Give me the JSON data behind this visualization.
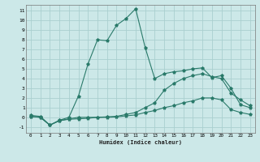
{
  "xlabel": "Humidex (Indice chaleur)",
  "bg_color": "#cce8e8",
  "line_color": "#2a7a6a",
  "grid_color": "#aacfcf",
  "xlim": [
    -0.5,
    23.5
  ],
  "ylim": [
    -1.6,
    11.6
  ],
  "xticks": [
    0,
    1,
    2,
    3,
    4,
    5,
    6,
    7,
    8,
    9,
    10,
    11,
    12,
    13,
    14,
    15,
    16,
    17,
    18,
    19,
    20,
    21,
    22,
    23
  ],
  "yticks": [
    -1,
    0,
    1,
    2,
    3,
    4,
    5,
    6,
    7,
    8,
    9,
    10,
    11
  ],
  "lines": [
    {
      "x": [
        0,
        1,
        2,
        3,
        4,
        5,
        6,
        7,
        8,
        9,
        10,
        11,
        12,
        13,
        14,
        15,
        16,
        17,
        18,
        19,
        20,
        21,
        22,
        23
      ],
      "y": [
        0.2,
        0.1,
        -0.8,
        -0.3,
        0.0,
        2.2,
        5.5,
        8.0,
        7.9,
        9.5,
        10.2,
        11.2,
        7.2,
        4.0,
        4.5,
        4.7,
        4.8,
        5.0,
        5.1,
        4.1,
        4.3,
        3.0,
        1.3,
        1.0
      ]
    },
    {
      "x": [
        0,
        1,
        2,
        3,
        4,
        5,
        6,
        7,
        8,
        9,
        10,
        11,
        12,
        13,
        14,
        15,
        16,
        17,
        18,
        19,
        20,
        21,
        22,
        23
      ],
      "y": [
        0.1,
        0.0,
        -0.8,
        -0.35,
        -0.15,
        -0.0,
        0.0,
        0.0,
        0.05,
        0.1,
        0.3,
        0.5,
        1.0,
        1.5,
        2.8,
        3.5,
        4.0,
        4.3,
        4.5,
        4.2,
        4.0,
        2.5,
        1.8,
        1.2
      ]
    },
    {
      "x": [
        0,
        1,
        2,
        3,
        4,
        5,
        6,
        7,
        8,
        9,
        10,
        11,
        12,
        13,
        14,
        15,
        16,
        17,
        18,
        19,
        20,
        21,
        22,
        23
      ],
      "y": [
        0.1,
        0.0,
        -0.8,
        -0.35,
        -0.2,
        -0.15,
        -0.1,
        -0.0,
        0.0,
        0.05,
        0.15,
        0.25,
        0.5,
        0.7,
        1.0,
        1.2,
        1.5,
        1.7,
        2.0,
        2.0,
        1.8,
        0.8,
        0.5,
        0.3
      ]
    }
  ]
}
